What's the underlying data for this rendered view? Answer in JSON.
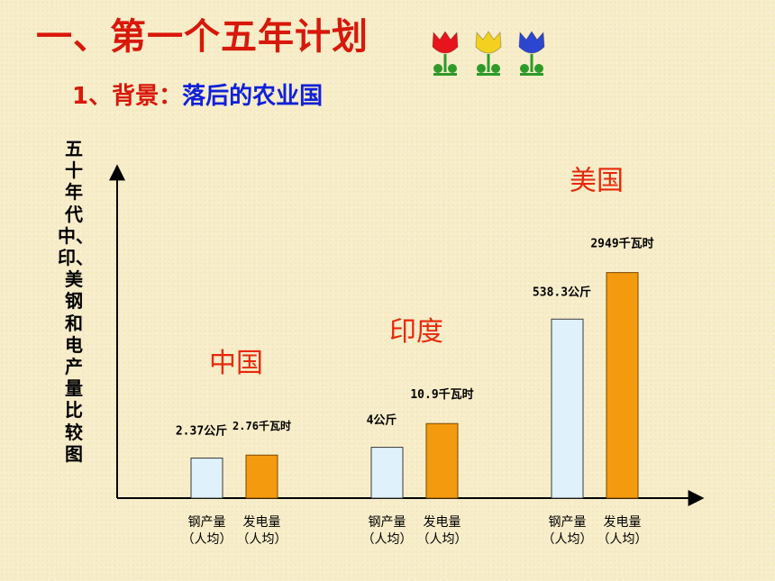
{
  "slide": {
    "title": "一、第一个五年计划",
    "subtitle_label": "1、背景：",
    "subtitle_value": "落后的农业国",
    "vertical_label": "五十年代中、印、美钢和电产量比较图"
  },
  "decor": {
    "flower_colors": [
      "#e8141c",
      "#f2d21e",
      "#2c46d0"
    ]
  },
  "colors": {
    "steel_fill": "#dff1fb",
    "power_fill": "#f39a0e",
    "group_label": "#e8280a"
  },
  "chart_data": {
    "type": "bar",
    "title": "五十年代中、印、美钢和电产量比较图",
    "categories": [
      "中国",
      "印度",
      "美国"
    ],
    "series": [
      {
        "name": "钢产量（人均）",
        "values": [
          2.37,
          4,
          538.3
        ],
        "labels": [
          "2.37公斤",
          "4公斤",
          "538.3公斤"
        ],
        "axis_label": [
          "钢产量",
          "（人均）"
        ]
      },
      {
        "name": "发电量（人均）",
        "values": [
          2.76,
          10.9,
          2949
        ],
        "labels": [
          "2.76千瓦时",
          "10.9千瓦时",
          "2949千瓦时"
        ],
        "axis_label": [
          "发电量",
          "（人均）"
        ]
      }
    ],
    "axes": {
      "x_ticks": false,
      "y_ticks": false,
      "grid": false
    }
  }
}
